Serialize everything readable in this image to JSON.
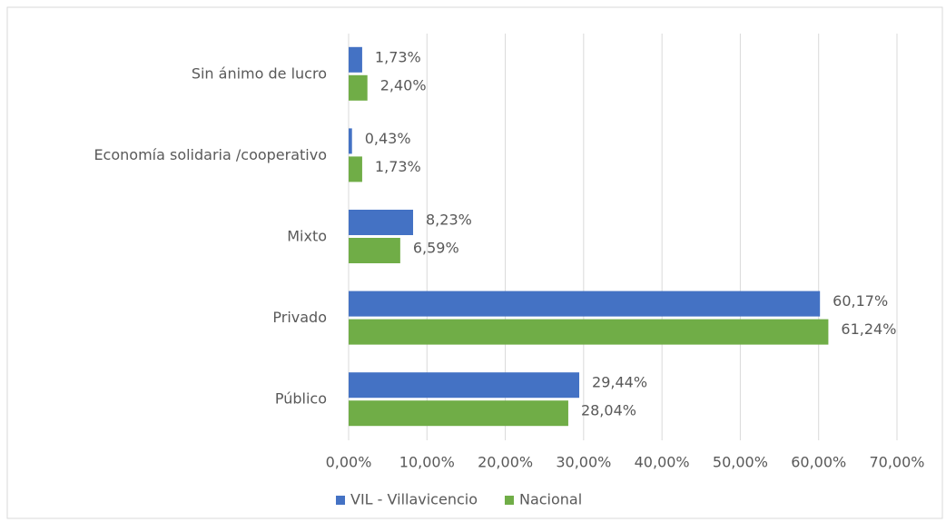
{
  "chart_data": {
    "type": "bar",
    "orientation": "horizontal",
    "categories": [
      "Sin ánimo de lucro",
      "Economía solidaria /cooperativo",
      "Mixto",
      "Privado",
      "Público"
    ],
    "series": [
      {
        "name": "VIL - Villavicencio",
        "color": "#4472c4",
        "values": [
          1.73,
          0.43,
          8.23,
          60.17,
          29.44
        ],
        "value_labels": [
          "1,73%",
          "0,43%",
          "8,23%",
          "60,17%",
          "29,44%"
        ]
      },
      {
        "name": "Nacional",
        "color": "#70ad47",
        "values": [
          2.4,
          1.73,
          6.59,
          61.24,
          28.04
        ],
        "value_labels": [
          "2,40%",
          "1,73%",
          "6,59%",
          "61,24%",
          "28,04%"
        ]
      }
    ],
    "xlim": [
      0,
      70
    ],
    "xticks": [
      {
        "value": 0,
        "label": "0,00%"
      },
      {
        "value": 10,
        "label": "10,00%"
      },
      {
        "value": 20,
        "label": "20,00%"
      },
      {
        "value": 30,
        "label": "30,00%"
      },
      {
        "value": 40,
        "label": "40,00%"
      },
      {
        "value": 50,
        "label": "50,00%"
      },
      {
        "value": 60,
        "label": "60,00%"
      },
      {
        "value": 70,
        "label": "70,00%"
      }
    ],
    "grid": true,
    "legend": "bottom"
  }
}
